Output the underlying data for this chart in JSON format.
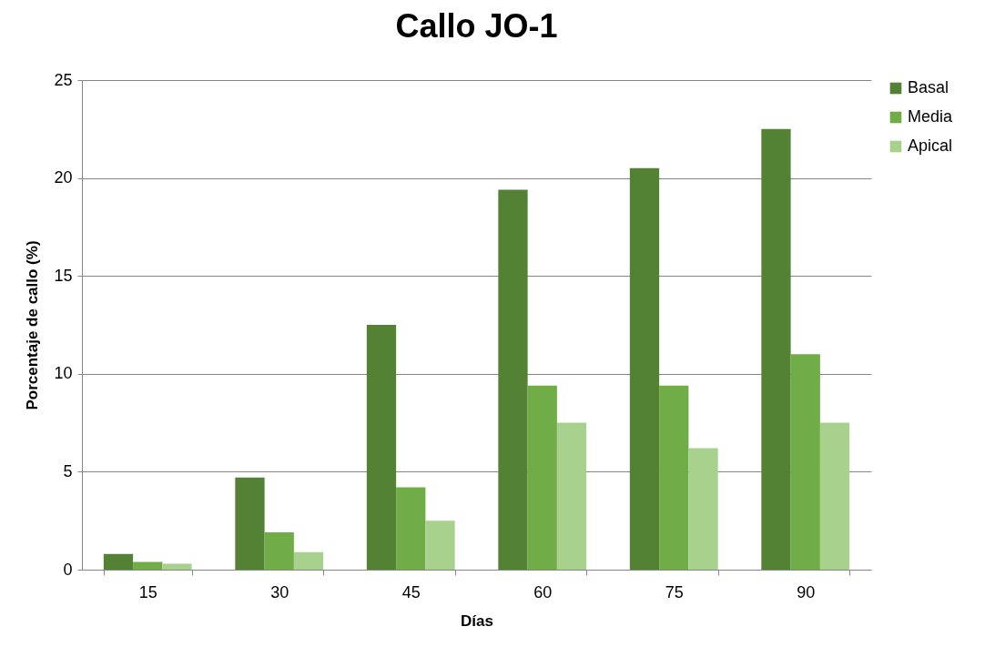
{
  "chart_data": {
    "type": "bar",
    "title": "Callo JO-1",
    "xlabel": "Días",
    "ylabel": "Porcentaje de callo (%)",
    "categories": [
      "15",
      "30",
      "45",
      "60",
      "75",
      "90"
    ],
    "series": [
      {
        "name": "Basal",
        "color": "#548235",
        "values": [
          0.8,
          4.7,
          12.5,
          19.4,
          20.5,
          22.5
        ]
      },
      {
        "name": "Media",
        "color": "#70ad47",
        "values": [
          0.4,
          1.9,
          4.2,
          9.4,
          9.4,
          11
        ]
      },
      {
        "name": "Apical",
        "color": "#a9d18e",
        "values": [
          0.3,
          0.9,
          2.5,
          7.5,
          6.2,
          7.5
        ]
      }
    ],
    "ylim": [
      0,
      25
    ],
    "yticks": [
      0,
      5,
      10,
      15,
      20,
      25
    ],
    "grid": "y",
    "legend": "right"
  }
}
